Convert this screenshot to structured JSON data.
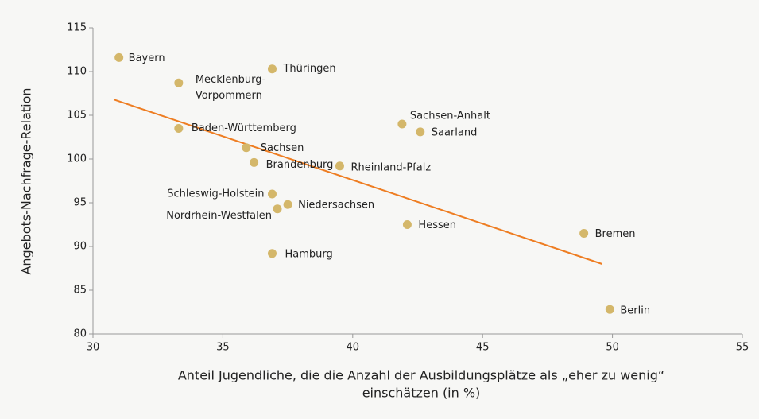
{
  "chart_data": {
    "type": "scatter",
    "xlabel": [
      "Anteil Jugendliche, die die Anzahl der Ausbildungsplätze als „eher zu wenig“",
      "einschätzen (in %)"
    ],
    "ylabel": "Angebots-Nachfrage-Relation",
    "labels": [
      "Bayern",
      [
        "Mecklenburg-",
        "Vorpommern"
      ],
      "Thüringen",
      "Baden-Württemberg",
      "Sachsen-Anhalt",
      "Saarland",
      "Sachsen",
      "Brandenburg",
      "Rheinland-Pfalz",
      "Schleswig-Holstein",
      "Niedersachsen",
      "Nordrhein-Westfalen",
      "Hessen",
      "Bremen",
      "Hamburg",
      "Berlin"
    ],
    "x": [
      31.0,
      33.3,
      36.9,
      33.3,
      41.9,
      42.6,
      35.9,
      36.2,
      39.5,
      36.9,
      37.5,
      37.1,
      42.1,
      48.9,
      36.9,
      49.9
    ],
    "values": [
      111.6,
      108.7,
      110.3,
      103.5,
      104.0,
      103.1,
      101.3,
      99.6,
      99.2,
      96.0,
      94.8,
      94.3,
      92.5,
      91.5,
      89.2,
      82.8
    ],
    "color": "#d4b76a",
    "trend": {
      "x": [
        30.8,
        49.6
      ],
      "values": [
        106.8,
        88.0
      ],
      "color": "#ee7d22"
    },
    "xlim": [
      30,
      55
    ],
    "xticks": [
      30,
      35,
      40,
      45,
      50,
      55
    ],
    "ylim": [
      80,
      115
    ],
    "yticks": [
      80,
      85,
      90,
      95,
      100,
      105,
      110,
      115
    ]
  }
}
